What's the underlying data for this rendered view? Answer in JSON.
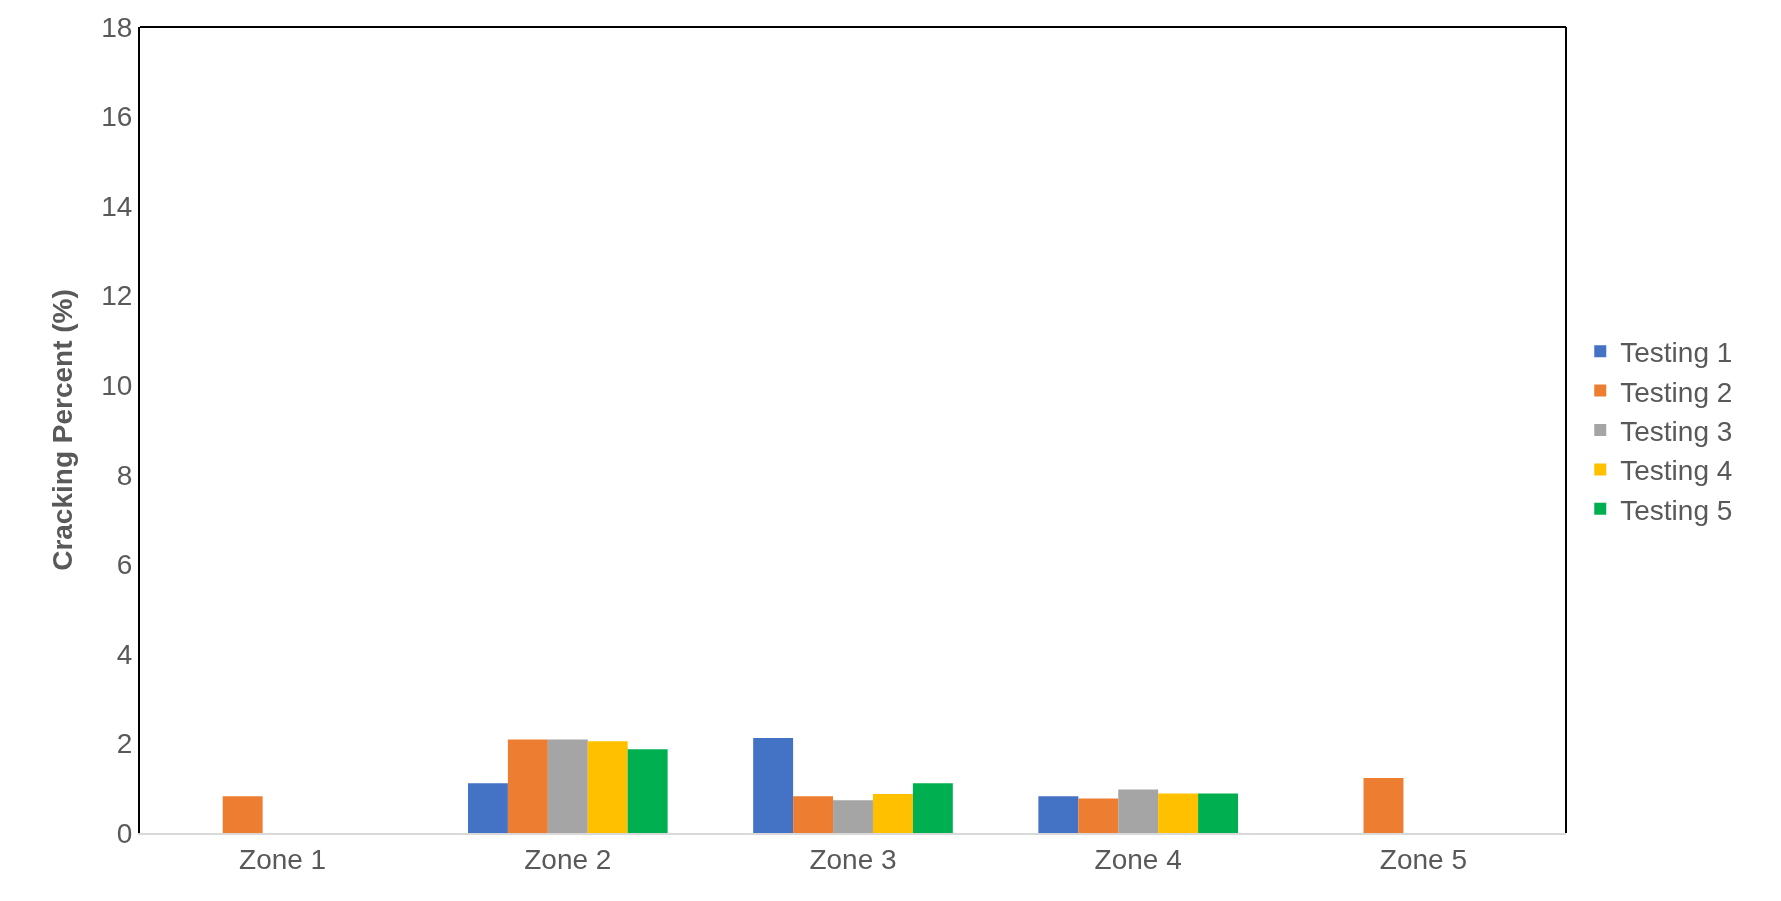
{
  "chart_data": {
    "type": "bar",
    "ylabel": "Cracking Percent (%)",
    "categories": [
      "Zone 1",
      "Zone 2",
      "Zone 3",
      "Zone 4",
      "Zone 5"
    ],
    "series": [
      {
        "name": "Testing 1",
        "color": "#4472c4",
        "values": [
          0,
          1.11,
          2.12,
          0.82,
          0
        ]
      },
      {
        "name": "Testing 2",
        "color": "#ed7d31",
        "values": [
          0.82,
          2.09,
          0.82,
          0.77,
          1.23
        ]
      },
      {
        "name": "Testing 3",
        "color": "#a5a5a5",
        "values": [
          0,
          2.09,
          0.73,
          0.97,
          0
        ]
      },
      {
        "name": "Testing 4",
        "color": "#ffc000",
        "values": [
          0,
          2.05,
          0.87,
          0.88,
          0
        ]
      },
      {
        "name": "Testing 5",
        "color": "#00b050",
        "values": [
          0,
          1.87,
          1.11,
          0.88,
          0
        ]
      }
    ],
    "ylim": [
      0,
      18
    ],
    "yticks": [
      0,
      2,
      4,
      6,
      8,
      10,
      12,
      14,
      16,
      18
    ],
    "grid": false,
    "legend": "right"
  }
}
